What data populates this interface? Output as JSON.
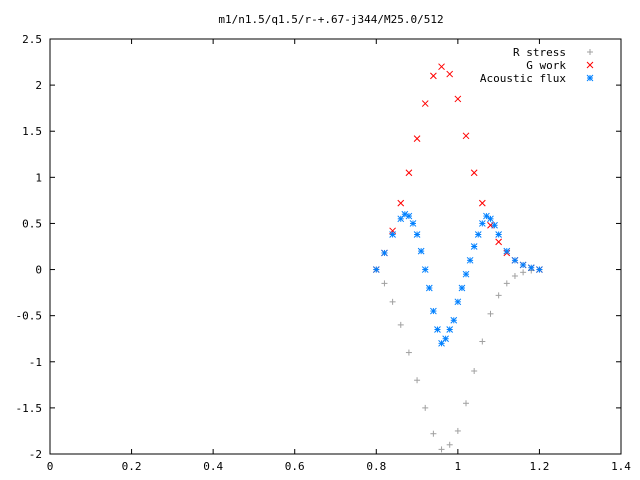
{
  "chart_data": {
    "type": "scatter",
    "title": "m1/n1.5/q1.5/r-+.67-j344/M25.0/512",
    "xlabel": "",
    "ylabel": "",
    "xlim": [
      0,
      1.4
    ],
    "ylim": [
      -2,
      2.5
    ],
    "xticks": [
      "0",
      "0.2",
      "0.4",
      "0.6",
      "0.8",
      "1",
      "1.2",
      "1.4"
    ],
    "yticks": [
      "2.5",
      "2",
      "1.5",
      "1",
      "0.5",
      "0",
      "-0.5",
      "-1",
      "-1.5",
      "-2"
    ],
    "grid": false,
    "legend_position": "top-right",
    "series": [
      {
        "name": "R stress",
        "marker": "plus",
        "color": "#a0a0a0",
        "points": [
          [
            0.8,
            0.0
          ],
          [
            0.82,
            -0.15
          ],
          [
            0.84,
            -0.35
          ],
          [
            0.86,
            -0.6
          ],
          [
            0.88,
            -0.9
          ],
          [
            0.9,
            -1.2
          ],
          [
            0.92,
            -1.5
          ],
          [
            0.94,
            -1.78
          ],
          [
            0.96,
            -1.95
          ],
          [
            0.98,
            -1.9
          ],
          [
            1.0,
            -1.75
          ],
          [
            1.02,
            -1.45
          ],
          [
            1.04,
            -1.1
          ],
          [
            1.06,
            -0.78
          ],
          [
            1.08,
            -0.48
          ],
          [
            1.1,
            -0.28
          ],
          [
            1.12,
            -0.15
          ],
          [
            1.14,
            -0.07
          ],
          [
            1.16,
            -0.03
          ],
          [
            1.18,
            -0.01
          ],
          [
            1.2,
            0.0
          ]
        ]
      },
      {
        "name": "G work",
        "marker": "cross",
        "color": "#ff0000",
        "points": [
          [
            0.8,
            0.0
          ],
          [
            0.82,
            0.18
          ],
          [
            0.84,
            0.42
          ],
          [
            0.86,
            0.72
          ],
          [
            0.88,
            1.05
          ],
          [
            0.9,
            1.42
          ],
          [
            0.92,
            1.8
          ],
          [
            0.94,
            2.1
          ],
          [
            0.96,
            2.2
          ],
          [
            0.98,
            2.12
          ],
          [
            1.0,
            1.85
          ],
          [
            1.02,
            1.45
          ],
          [
            1.04,
            1.05
          ],
          [
            1.06,
            0.72
          ],
          [
            1.08,
            0.48
          ],
          [
            1.1,
            0.3
          ],
          [
            1.12,
            0.18
          ],
          [
            1.14,
            0.1
          ],
          [
            1.16,
            0.05
          ],
          [
            1.18,
            0.02
          ],
          [
            1.2,
            0.0
          ]
        ]
      },
      {
        "name": "Acoustic flux",
        "marker": "star",
        "color": "#0080ff",
        "points": [
          [
            0.8,
            0.0
          ],
          [
            0.82,
            0.18
          ],
          [
            0.84,
            0.38
          ],
          [
            0.86,
            0.55
          ],
          [
            0.87,
            0.6
          ],
          [
            0.88,
            0.58
          ],
          [
            0.89,
            0.5
          ],
          [
            0.9,
            0.38
          ],
          [
            0.91,
            0.2
          ],
          [
            0.92,
            0.0
          ],
          [
            0.93,
            -0.2
          ],
          [
            0.94,
            -0.45
          ],
          [
            0.95,
            -0.65
          ],
          [
            0.96,
            -0.8
          ],
          [
            0.97,
            -0.75
          ],
          [
            0.98,
            -0.65
          ],
          [
            0.99,
            -0.55
          ],
          [
            1.0,
            -0.35
          ],
          [
            1.01,
            -0.2
          ],
          [
            1.02,
            -0.05
          ],
          [
            1.03,
            0.1
          ],
          [
            1.04,
            0.25
          ],
          [
            1.05,
            0.38
          ],
          [
            1.06,
            0.5
          ],
          [
            1.07,
            0.58
          ],
          [
            1.08,
            0.55
          ],
          [
            1.09,
            0.48
          ],
          [
            1.1,
            0.38
          ],
          [
            1.12,
            0.2
          ],
          [
            1.14,
            0.1
          ],
          [
            1.16,
            0.05
          ],
          [
            1.18,
            0.02
          ],
          [
            1.2,
            0.0
          ]
        ]
      }
    ]
  }
}
